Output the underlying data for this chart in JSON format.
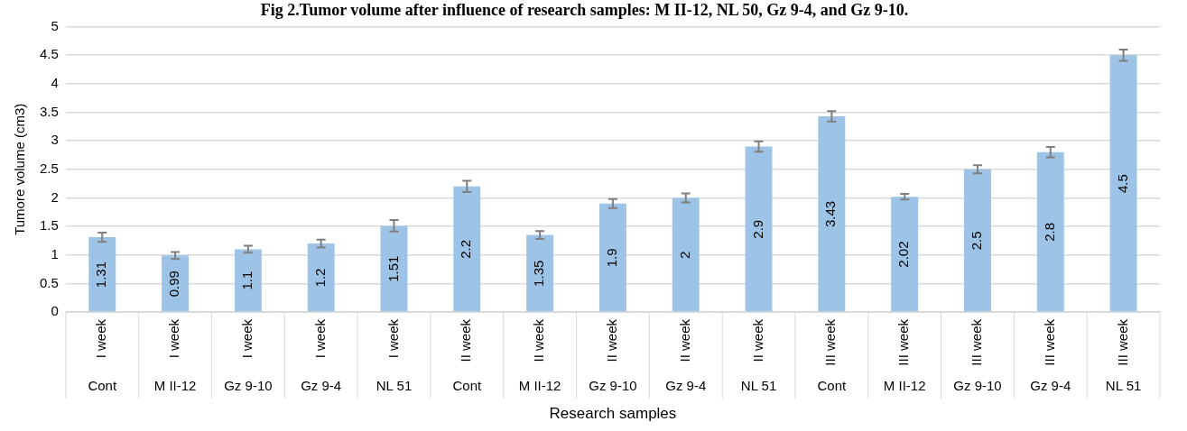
{
  "chart_data": {
    "type": "bar",
    "title": "Fig 2.Tumor volume after influence of research samples: M II-12, NL 50, Gz 9-4, and Gz 9-10.",
    "xlabel": "Research samples",
    "ylabel": "Tumore volume (cm3)",
    "categories": [
      "I week\nCont",
      "I week\nM II-12",
      "I week\nGz 9-10",
      "I week\nGz 9-4",
      "I week\nNL 51",
      "II week\nCont",
      "II week\nM II-12",
      "II week\nGz 9-10",
      "II week\nGz 9-4",
      "II week\nNL 51",
      "III week\nCont",
      "III week\nM II-12",
      "III week\nGz 9-10",
      "III week\nGz 9-4",
      "III week\nNL 51"
    ],
    "values": [
      1.31,
      0.99,
      1.1,
      1.2,
      1.51,
      2.2,
      1.35,
      1.9,
      2,
      2.9,
      3.43,
      2.02,
      2.5,
      2.8,
      4.5
    ],
    "errors": [
      0.08,
      0.06,
      0.06,
      0.07,
      0.1,
      0.1,
      0.07,
      0.08,
      0.08,
      0.09,
      0.09,
      0.05,
      0.07,
      0.09,
      0.1
    ],
    "color": "#9dc3e6",
    "ylim": [
      0,
      5
    ],
    "yticks": [
      0,
      0.5,
      1,
      1.5,
      2,
      2.5,
      3,
      3.5,
      4,
      4.5,
      5
    ],
    "grid": "y",
    "legend": false,
    "data_labels": true
  }
}
